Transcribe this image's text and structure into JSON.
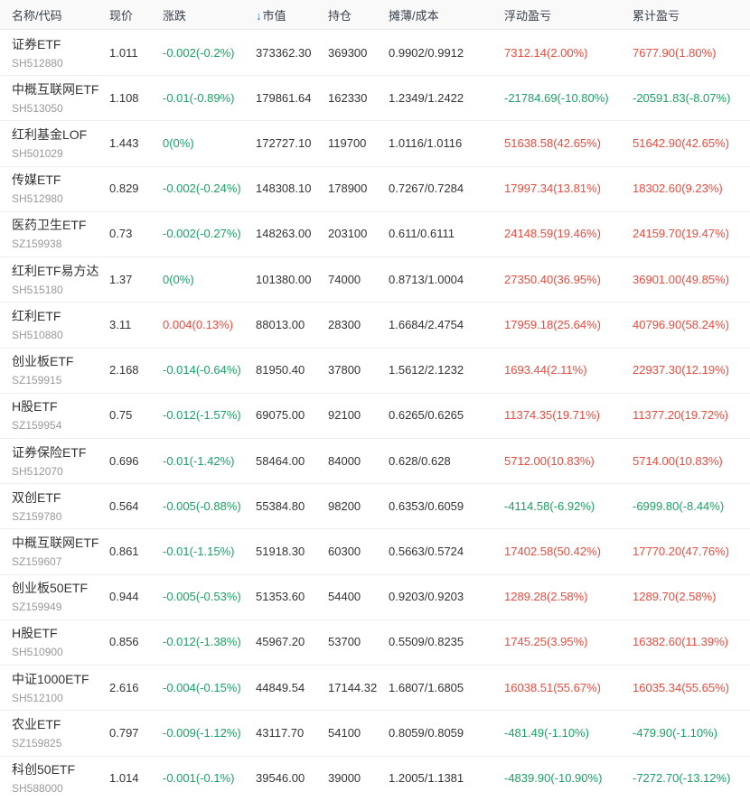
{
  "colors": {
    "up_red": "#ee4a3e",
    "down_green": "#1aa263",
    "sort_arrow_blue": "#2d6cf0",
    "header_text": "#39404a",
    "body_text": "#333333",
    "code_text": "#999999"
  },
  "table": {
    "sort_icon": "↓",
    "sorted_column": "市值",
    "sort_direction": "desc",
    "columns": [
      {
        "key": "name_code",
        "label": "名称/代码"
      },
      {
        "key": "price",
        "label": "现价"
      },
      {
        "key": "change",
        "label": "涨跌"
      },
      {
        "key": "market_value",
        "label": "市值"
      },
      {
        "key": "position",
        "label": "持仓"
      },
      {
        "key": "diluted_cost",
        "label": "摊薄/成本"
      },
      {
        "key": "floating_pl",
        "label": "浮动盈亏"
      },
      {
        "key": "cumulative_pl",
        "label": "累计盈亏"
      }
    ],
    "rows": [
      {
        "name": "证券ETF",
        "code": "SH512880",
        "price": "1.011",
        "change": {
          "text": "-0.002(-0.2%)",
          "dir": "down"
        },
        "market_value": "373362.30",
        "position": "369300",
        "diluted_cost": "0.9902/0.9912",
        "floating_pl": {
          "text": "7312.14(2.00%)",
          "dir": "up"
        },
        "cumulative_pl": {
          "text": "7677.90(1.80%)",
          "dir": "up"
        }
      },
      {
        "name": "中概互联网ETF",
        "code": "SH513050",
        "price": "1.108",
        "change": {
          "text": "-0.01(-0.89%)",
          "dir": "down"
        },
        "market_value": "179861.64",
        "position": "162330",
        "diluted_cost": "1.2349/1.2422",
        "floating_pl": {
          "text": "-21784.69(-10.80%)",
          "dir": "down"
        },
        "cumulative_pl": {
          "text": "-20591.83(-8.07%)",
          "dir": "down"
        }
      },
      {
        "name": "红利基金LOF",
        "code": "SH501029",
        "price": "1.443",
        "change": {
          "text": "0(0%)",
          "dir": "down"
        },
        "market_value": "172727.10",
        "position": "119700",
        "diluted_cost": "1.0116/1.0116",
        "floating_pl": {
          "text": "51638.58(42.65%)",
          "dir": "up"
        },
        "cumulative_pl": {
          "text": "51642.90(42.65%)",
          "dir": "up"
        }
      },
      {
        "name": "传媒ETF",
        "code": "SH512980",
        "price": "0.829",
        "change": {
          "text": "-0.002(-0.24%)",
          "dir": "down"
        },
        "market_value": "148308.10",
        "position": "178900",
        "diluted_cost": "0.7267/0.7284",
        "floating_pl": {
          "text": "17997.34(13.81%)",
          "dir": "up"
        },
        "cumulative_pl": {
          "text": "18302.60(9.23%)",
          "dir": "up"
        }
      },
      {
        "name": "医药卫生ETF",
        "code": "SZ159938",
        "price": "0.73",
        "change": {
          "text": "-0.002(-0.27%)",
          "dir": "down"
        },
        "market_value": "148263.00",
        "position": "203100",
        "diluted_cost": "0.611/0.6111",
        "floating_pl": {
          "text": "24148.59(19.46%)",
          "dir": "up"
        },
        "cumulative_pl": {
          "text": "24159.70(19.47%)",
          "dir": "up"
        }
      },
      {
        "name": "红利ETF易方达",
        "code": "SH515180",
        "price": "1.37",
        "change": {
          "text": "0(0%)",
          "dir": "down"
        },
        "market_value": "101380.00",
        "position": "74000",
        "diluted_cost": "0.8713/1.0004",
        "floating_pl": {
          "text": "27350.40(36.95%)",
          "dir": "up"
        },
        "cumulative_pl": {
          "text": "36901.00(49.85%)",
          "dir": "up"
        }
      },
      {
        "name": "红利ETF",
        "code": "SH510880",
        "price": "3.11",
        "change": {
          "text": "0.004(0.13%)",
          "dir": "up"
        },
        "market_value": "88013.00",
        "position": "28300",
        "diluted_cost": "1.6684/2.4754",
        "floating_pl": {
          "text": "17959.18(25.64%)",
          "dir": "up"
        },
        "cumulative_pl": {
          "text": "40796.90(58.24%)",
          "dir": "up"
        }
      },
      {
        "name": "创业板ETF",
        "code": "SZ159915",
        "price": "2.168",
        "change": {
          "text": "-0.014(-0.64%)",
          "dir": "down"
        },
        "market_value": "81950.40",
        "position": "37800",
        "diluted_cost": "1.5612/2.1232",
        "floating_pl": {
          "text": "1693.44(2.11%)",
          "dir": "up"
        },
        "cumulative_pl": {
          "text": "22937.30(12.19%)",
          "dir": "up"
        }
      },
      {
        "name": "H股ETF",
        "code": "SZ159954",
        "price": "0.75",
        "change": {
          "text": "-0.012(-1.57%)",
          "dir": "down"
        },
        "market_value": "69075.00",
        "position": "92100",
        "diluted_cost": "0.6265/0.6265",
        "floating_pl": {
          "text": "11374.35(19.71%)",
          "dir": "up"
        },
        "cumulative_pl": {
          "text": "11377.20(19.72%)",
          "dir": "up"
        }
      },
      {
        "name": "证券保险ETF",
        "code": "SH512070",
        "price": "0.696",
        "change": {
          "text": "-0.01(-1.42%)",
          "dir": "down"
        },
        "market_value": "58464.00",
        "position": "84000",
        "diluted_cost": "0.628/0.628",
        "floating_pl": {
          "text": "5712.00(10.83%)",
          "dir": "up"
        },
        "cumulative_pl": {
          "text": "5714.00(10.83%)",
          "dir": "up"
        }
      },
      {
        "name": "双创ETF",
        "code": "SZ159780",
        "price": "0.564",
        "change": {
          "text": "-0.005(-0.88%)",
          "dir": "down"
        },
        "market_value": "55384.80",
        "position": "98200",
        "diluted_cost": "0.6353/0.6059",
        "floating_pl": {
          "text": "-4114.58(-6.92%)",
          "dir": "down"
        },
        "cumulative_pl": {
          "text": "-6999.80(-8.44%)",
          "dir": "down"
        }
      },
      {
        "name": "中概互联网ETF",
        "code": "SZ159607",
        "price": "0.861",
        "change": {
          "text": "-0.01(-1.15%)",
          "dir": "down"
        },
        "market_value": "51918.30",
        "position": "60300",
        "diluted_cost": "0.5663/0.5724",
        "floating_pl": {
          "text": "17402.58(50.42%)",
          "dir": "up"
        },
        "cumulative_pl": {
          "text": "17770.20(47.76%)",
          "dir": "up"
        }
      },
      {
        "name": "创业板50ETF",
        "code": "SZ159949",
        "price": "0.944",
        "change": {
          "text": "-0.005(-0.53%)",
          "dir": "down"
        },
        "market_value": "51353.60",
        "position": "54400",
        "diluted_cost": "0.9203/0.9203",
        "floating_pl": {
          "text": "1289.28(2.58%)",
          "dir": "up"
        },
        "cumulative_pl": {
          "text": "1289.70(2.58%)",
          "dir": "up"
        }
      },
      {
        "name": "H股ETF",
        "code": "SH510900",
        "price": "0.856",
        "change": {
          "text": "-0.012(-1.38%)",
          "dir": "down"
        },
        "market_value": "45967.20",
        "position": "53700",
        "diluted_cost": "0.5509/0.8235",
        "floating_pl": {
          "text": "1745.25(3.95%)",
          "dir": "up"
        },
        "cumulative_pl": {
          "text": "16382.60(11.39%)",
          "dir": "up"
        }
      },
      {
        "name": "中证1000ETF",
        "code": "SH512100",
        "price": "2.616",
        "change": {
          "text": "-0.004(-0.15%)",
          "dir": "down"
        },
        "market_value": "44849.54",
        "position": "17144.32",
        "diluted_cost": "1.6807/1.6805",
        "floating_pl": {
          "text": "16038.51(55.67%)",
          "dir": "up"
        },
        "cumulative_pl": {
          "text": "16035.34(55.65%)",
          "dir": "up"
        }
      },
      {
        "name": "农业ETF",
        "code": "SZ159825",
        "price": "0.797",
        "change": {
          "text": "-0.009(-1.12%)",
          "dir": "down"
        },
        "market_value": "43117.70",
        "position": "54100",
        "diluted_cost": "0.8059/0.8059",
        "floating_pl": {
          "text": "-481.49(-1.10%)",
          "dir": "down"
        },
        "cumulative_pl": {
          "text": "-479.90(-1.10%)",
          "dir": "down"
        }
      },
      {
        "name": "科创50ETF",
        "code": "SH588000",
        "price": "1.014",
        "change": {
          "text": "-0.001(-0.1%)",
          "dir": "down"
        },
        "market_value": "39546.00",
        "position": "39000",
        "diluted_cost": "1.2005/1.1381",
        "floating_pl": {
          "text": "-4839.90(-10.90%)",
          "dir": "down"
        },
        "cumulative_pl": {
          "text": "-7272.70(-13.12%)",
          "dir": "down"
        }
      }
    ]
  }
}
